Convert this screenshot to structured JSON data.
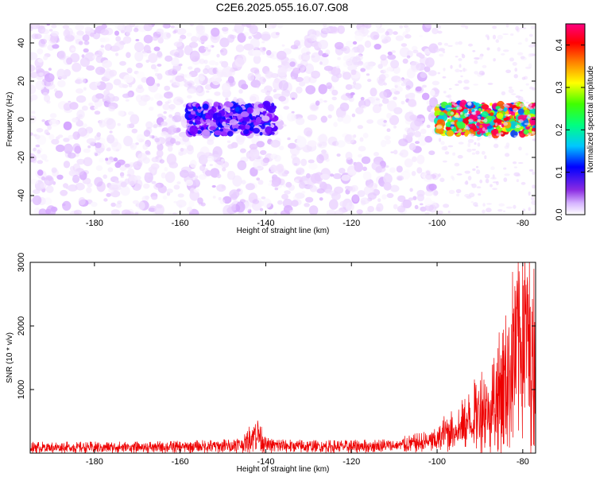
{
  "title": "C2E6.2025.055.16.07.G08",
  "chart_data": [
    {
      "type": "heatmap",
      "xlabel": "Height of straight line (km)",
      "ylabel": "Frequency (Hz)",
      "xlim": [
        -195,
        -77
      ],
      "ylim": [
        -50,
        50
      ],
      "x_ticks": [
        -180,
        -160,
        -140,
        -120,
        -100,
        -80
      ],
      "y_ticks": [
        -40,
        -20,
        0,
        20,
        40
      ],
      "colorbar": {
        "label": "Normalized spectral amplitude",
        "range": [
          0,
          0.45
        ],
        "ticks": [
          0.0,
          0.1,
          0.2,
          0.3,
          0.4
        ],
        "colors": [
          "#ffffff",
          "#e6c8ff",
          "#8000ff",
          "#0000ff",
          "#00c0ff",
          "#00ff80",
          "#80ff00",
          "#ffff00",
          "#ff8000",
          "#ff0000",
          "#ff0080"
        ]
      },
      "features": [
        {
          "x_range": [
            -195,
            -100
          ],
          "freq_range": [
            -50,
            50
          ],
          "amplitude": 0.03
        },
        {
          "x_range": [
            -158,
            -138
          ],
          "freq_range": [
            -8,
            8
          ],
          "amplitude": 0.12
        },
        {
          "x_range": [
            -100,
            -77
          ],
          "freq_range": [
            -8,
            8
          ],
          "amplitude": 0.4
        }
      ],
      "grid": false
    },
    {
      "type": "line",
      "xlabel": "Height of straight line (km)",
      "ylabel": "SNR (10 * v/v)",
      "xlim": [
        -195,
        -77
      ],
      "ylim": [
        0,
        3000
      ],
      "x_ticks": [
        -180,
        -160,
        -140,
        -120,
        -100,
        -80
      ],
      "y_ticks": [
        1000,
        2000,
        3000
      ],
      "series": [
        {
          "color": "#ee0000",
          "x": [
            -195,
            -180,
            -160,
            -150,
            -145,
            -142,
            -140,
            -130,
            -120,
            -110,
            -100,
            -98,
            -95,
            -92,
            -90,
            -88,
            -86,
            -84,
            -82,
            -80,
            -78
          ],
          "y": [
            140,
            140,
            150,
            170,
            220,
            520,
            190,
            160,
            160,
            180,
            300,
            500,
            600,
            800,
            1100,
            1000,
            1400,
            1700,
            2400,
            3000,
            2400
          ]
        }
      ],
      "grid": false
    }
  ]
}
